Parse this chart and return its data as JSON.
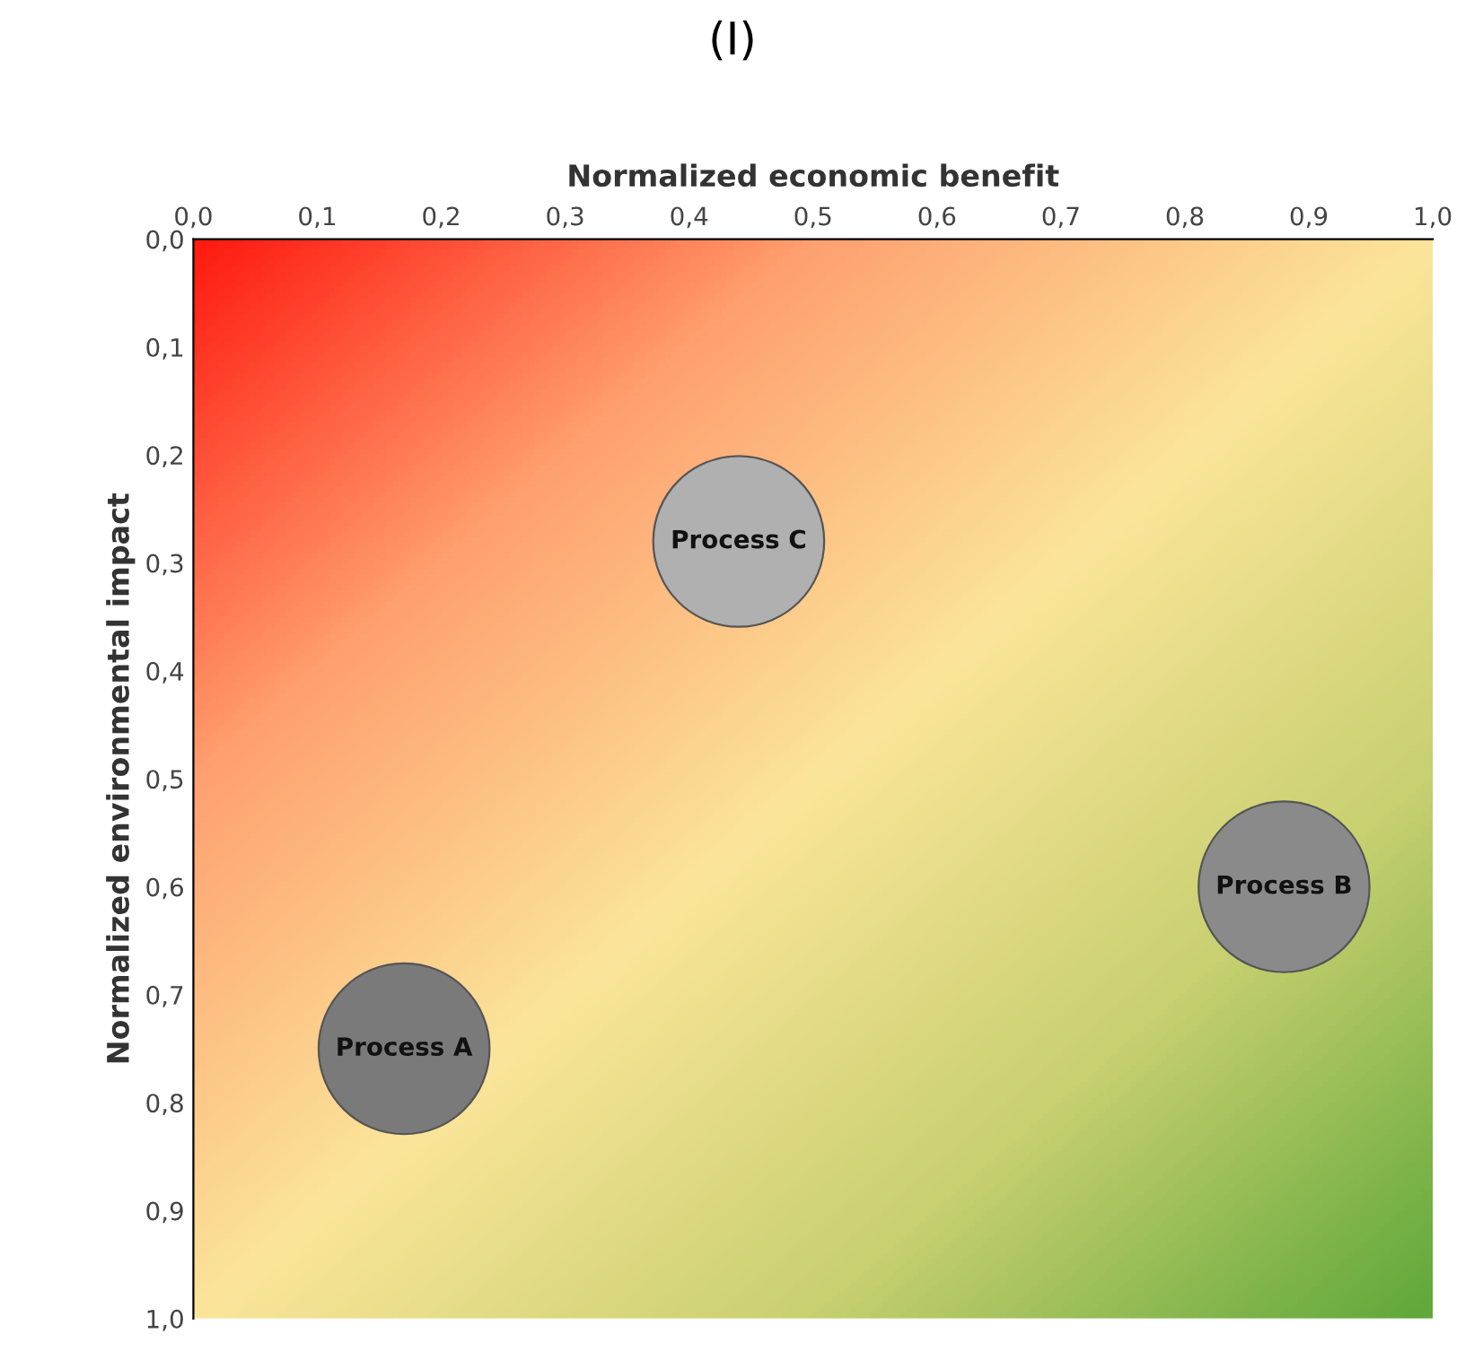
{
  "chart_data": {
    "type": "bubble",
    "title": "(I)",
    "xlabel": "Normalized economic benefit",
    "ylabel": "Normalized environmental impact",
    "series": [
      {
        "name": "Process A",
        "color": "#7a7a7a",
        "x": [
          0.17
        ],
        "values": [
          0.75
        ],
        "sizes": [
          1
        ]
      },
      {
        "name": "Process B",
        "color": "#8a8a8a",
        "x": [
          0.88
        ],
        "values": [
          0.6
        ],
        "sizes": [
          1
        ]
      },
      {
        "name": "Process C",
        "color": "#b0b0b0",
        "x": [
          0.44
        ],
        "values": [
          0.28
        ],
        "sizes": [
          1
        ]
      }
    ],
    "xlim": [
      0,
      1
    ],
    "ylim": [
      1,
      0
    ],
    "xticks": [
      {
        "value": 0,
        "label": "0,0"
      },
      {
        "value": 0.1,
        "label": "0,1"
      },
      {
        "value": 0.2,
        "label": "0,2"
      },
      {
        "value": 0.3,
        "label": "0,3"
      },
      {
        "value": 0.4,
        "label": "0,4"
      },
      {
        "value": 0.5,
        "label": "0,5"
      },
      {
        "value": 0.6,
        "label": "0,6"
      },
      {
        "value": 0.7,
        "label": "0,7"
      },
      {
        "value": 0.8,
        "label": "0,8"
      },
      {
        "value": 0.9,
        "label": "0,9"
      },
      {
        "value": 1,
        "label": "1,0"
      }
    ],
    "yticks": [
      {
        "value": 0,
        "label": "0,0"
      },
      {
        "value": 0.1,
        "label": "0,1"
      },
      {
        "value": 0.2,
        "label": "0,2"
      },
      {
        "value": 0.3,
        "label": "0,3"
      },
      {
        "value": 0.4,
        "label": "0,4"
      },
      {
        "value": 0.5,
        "label": "0,5"
      },
      {
        "value": 0.6,
        "label": "0,6"
      },
      {
        "value": 0.7,
        "label": "0,7"
      },
      {
        "value": 0.8,
        "label": "0,8"
      },
      {
        "value": 0.9,
        "label": "0,9"
      },
      {
        "value": 1,
        "label": "1,0"
      }
    ],
    "grid": false,
    "legend": false
  }
}
